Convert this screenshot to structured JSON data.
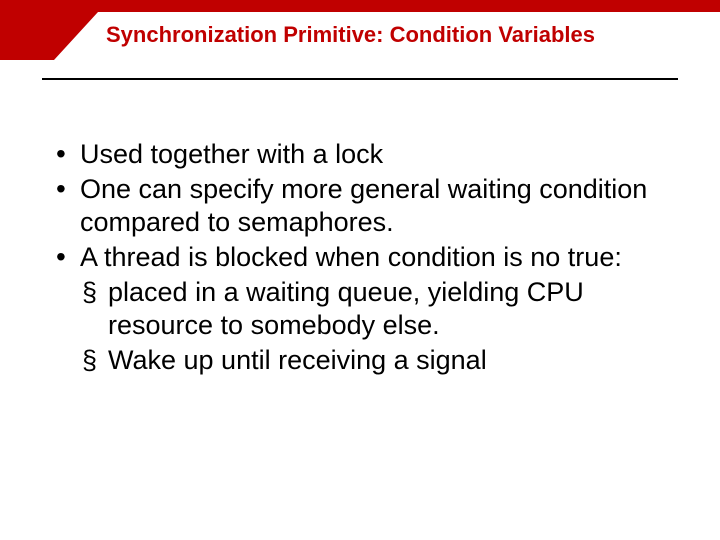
{
  "colors": {
    "accent": "#c00000",
    "text": "#000000",
    "background": "#ffffff",
    "divider": "#000000"
  },
  "typography": {
    "title_fontsize": 22,
    "body_fontsize": 27,
    "line_height": 33,
    "font_family": "Arial",
    "title_weight": "bold"
  },
  "title": "Synchronization Primitive: Condition Variables",
  "bullets": [
    {
      "text": "Used together with a lock"
    },
    {
      "text": "One can specify more general waiting condition compared to semaphores."
    },
    {
      "text": "A thread  is blocked when condition is no true:",
      "sub": [
        {
          "text": "placed in a waiting queue,  yielding CPU resource to somebody else."
        },
        {
          "text": "Wake up until receiving a signal"
        }
      ]
    }
  ]
}
